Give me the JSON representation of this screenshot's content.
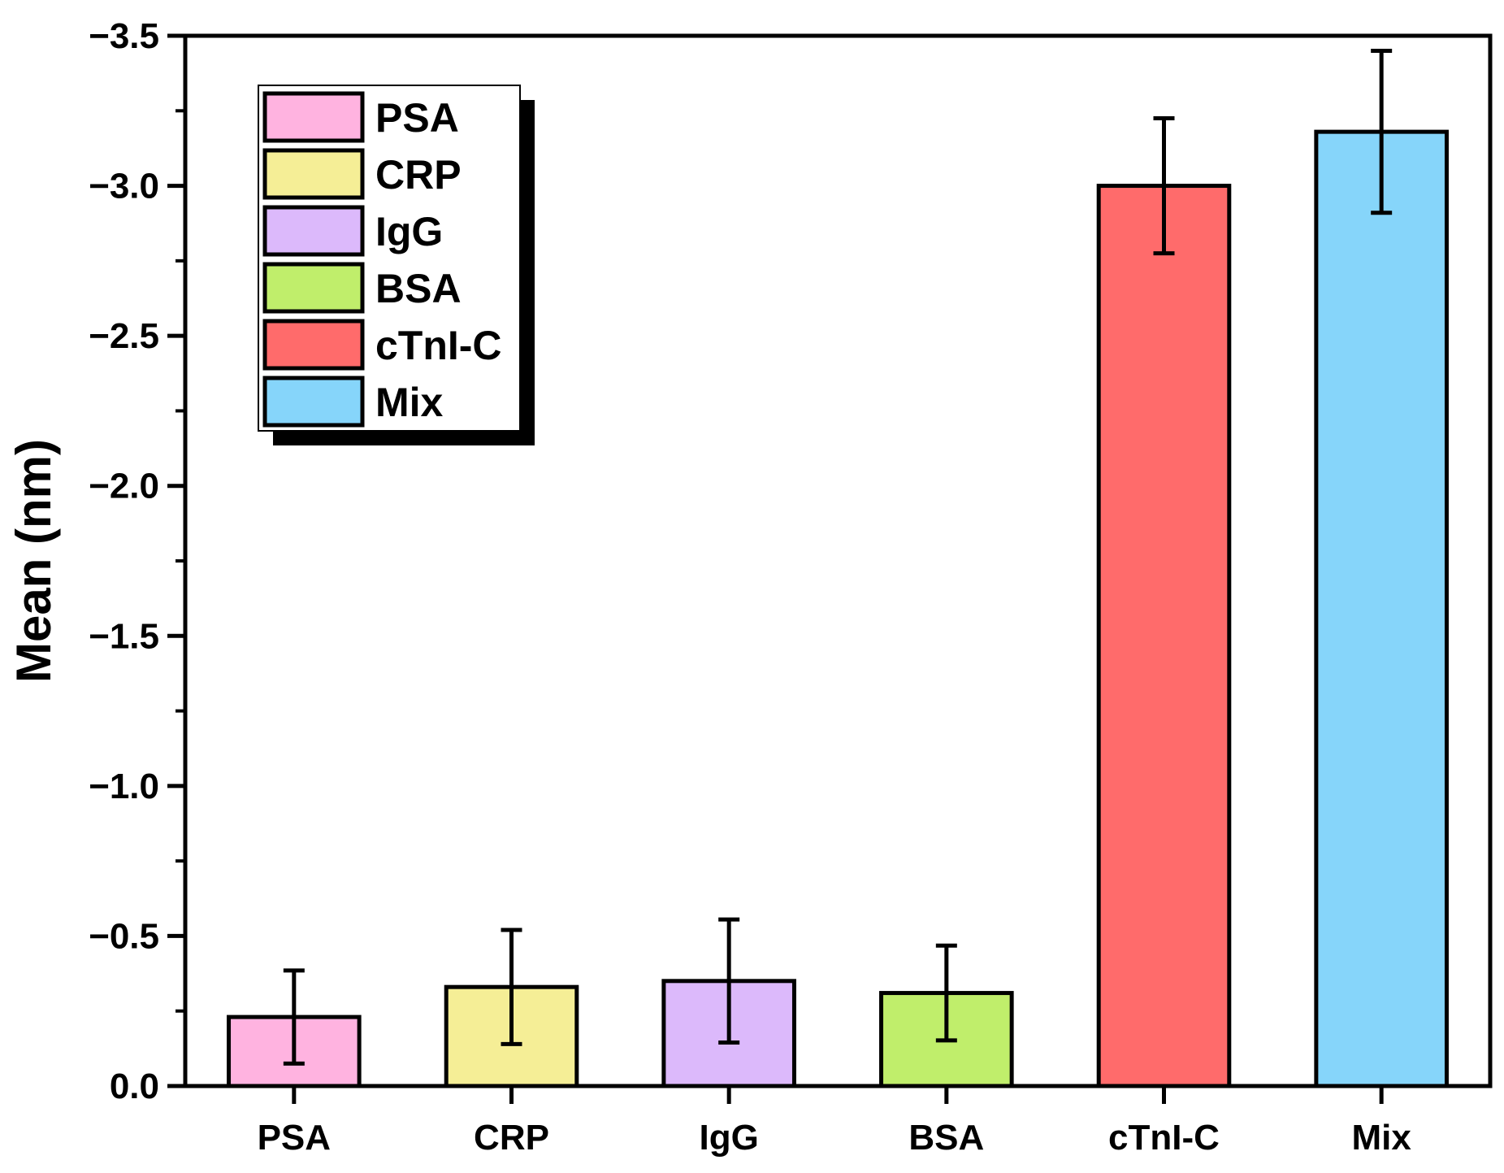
{
  "chart_data": {
    "type": "bar",
    "title": "",
    "xlabel": "",
    "ylabel": "Mean (nm)",
    "ylim": [
      0,
      -3.5
    ],
    "y_axis_inverted": true,
    "yticks": [
      "0.0",
      "−0.5",
      "−1.0",
      "−1.5",
      "−2.0",
      "−2.5",
      "−3.0",
      "−3.5"
    ],
    "ytick_values": [
      0,
      -0.5,
      -1.0,
      -1.5,
      -2.0,
      -2.5,
      -3.0,
      -3.5
    ],
    "categories": [
      "PSA",
      "CRP",
      "IgG",
      "BSA",
      "cTnI-C",
      "Mix"
    ],
    "values": [
      -0.23,
      -0.33,
      -0.35,
      -0.31,
      -3.0,
      -3.18
    ],
    "errors": [
      0.155,
      0.19,
      0.205,
      0.158,
      0.225,
      0.27
    ],
    "colors": [
      "#FFB3E0",
      "#F5EE96",
      "#DCB9FB",
      "#C0EE6B",
      "#FF6B6B",
      "#86D5FA"
    ],
    "legend": {
      "position": "top-left",
      "entries": [
        "PSA",
        "CRP",
        "IgG",
        "BSA",
        "cTnI-C",
        "Mix"
      ]
    },
    "grid": false
  }
}
